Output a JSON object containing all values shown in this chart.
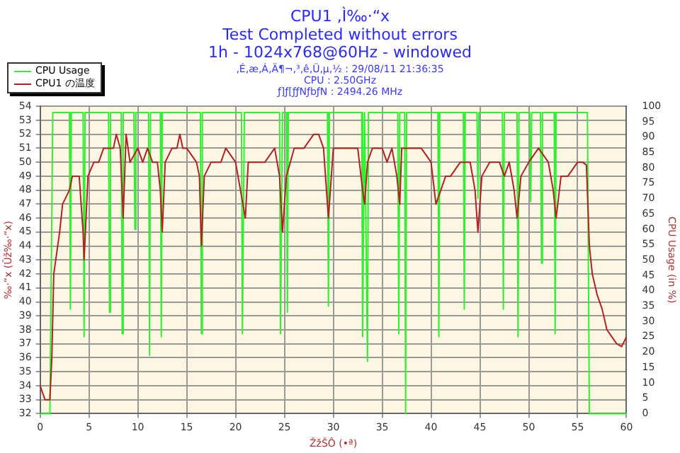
{
  "chart_data": {
    "type": "line",
    "title": "CPU1 ,Ì‰·“x",
    "subtitle": "Test Completed without errors\n1h - 1024x768@60Hz - windowed",
    "annotations": [
      ",É‚æ‚Á‚Ä¶¬‚³‚ê‚Ü‚µ‚½ : 29/08/11 21:36:35",
      "CPU : 2.50GHz",
      "ƒ]ƒ[ƒƒNƒbƒN : 2494.26 MHz"
    ],
    "xlabel": "ŽžŠÔ (•ª)",
    "ylabel": "‰·“x (Ûž‰·“x)",
    "y2label": "CPU Usage (in %)",
    "xlim": [
      0,
      60
    ],
    "xticks": [
      0,
      5,
      10,
      15,
      20,
      25,
      30,
      35,
      40,
      45,
      50,
      55,
      60
    ],
    "ylim": [
      32,
      54
    ],
    "yticks": [
      32,
      33,
      34,
      35,
      36,
      37,
      38,
      39,
      40,
      41,
      42,
      43,
      44,
      45,
      46,
      47,
      48,
      49,
      50,
      51,
      52,
      53,
      54
    ],
    "y2lim": [
      0,
      100
    ],
    "y2ticks": [
      0,
      5,
      10,
      15,
      20,
      25,
      30,
      35,
      40,
      45,
      50,
      55,
      60,
      65,
      70,
      75,
      80,
      85,
      90,
      95,
      100
    ],
    "grid": true,
    "legend": "top left",
    "marker": "none",
    "line_style": "solid",
    "series": [
      {
        "name": "CPU Usage",
        "color": "#33ee33",
        "axis": "y2",
        "x": [
          0,
          1,
          1.3,
          3,
          3.1,
          3.2,
          4.4,
          4.5,
          4.6,
          7,
          7.1,
          7.2,
          8.3,
          8.4,
          8.5,
          9.6,
          9.7,
          9.8,
          11.1,
          11.2,
          11.3,
          12.3,
          12.4,
          12.5,
          16.4,
          16.5,
          16.6,
          20.6,
          20.7,
          20.9,
          24.5,
          24.6,
          24.8,
          25.2,
          25.3,
          25.4,
          29.4,
          29.5,
          29.6,
          32.9,
          33,
          33.2,
          33.5,
          33.6,
          36.6,
          36.7,
          36.8,
          37.3,
          37.4,
          37.5,
          40.7,
          40.8,
          40.9,
          43.3,
          43.4,
          43.5,
          44.7,
          44.8,
          44.9,
          47.3,
          47.4,
          47.5,
          48.8,
          48.9,
          49,
          50.1,
          50.2,
          50.3,
          51.2,
          51.3,
          51.4,
          52.6,
          52.7,
          52.8,
          56,
          56.2,
          60
        ],
        "values": [
          0,
          0,
          98,
          98,
          34,
          98,
          98,
          25,
          98,
          98,
          33,
          98,
          98,
          26,
          98,
          98,
          60,
          98,
          98,
          19,
          98,
          98,
          25,
          98,
          98,
          26,
          98,
          98,
          26,
          98,
          98,
          26,
          98,
          98,
          33,
          98,
          98,
          35,
          98,
          98,
          25,
          98,
          17,
          98,
          98,
          26,
          98,
          98,
          0,
          98,
          98,
          25,
          98,
          98,
          34,
          98,
          98,
          70,
          98,
          98,
          34,
          98,
          98,
          25,
          98,
          98,
          69,
          98,
          98,
          49,
          98,
          98,
          26,
          98,
          98,
          0,
          0
        ]
      },
      {
        "name": "CPU1 の温度",
        "color": "#b22222",
        "x": [
          0,
          0.5,
          1,
          1.2,
          1.4,
          1.8,
          2,
          2.3,
          3,
          3.3,
          4,
          4.4,
          4.5,
          4.9,
          5.5,
          6,
          6.5,
          7,
          7.5,
          7.8,
          8.2,
          8.5,
          8.8,
          9.2,
          10,
          10.5,
          11,
          11.5,
          12,
          12.3,
          12.5,
          12.8,
          13.5,
          14,
          14.3,
          14.6,
          15,
          16,
          16.3,
          16.5,
          16.8,
          17.5,
          18.5,
          19,
          20,
          20.5,
          21,
          21.3,
          22,
          23,
          24,
          24.5,
          24.8,
          25.2,
          25.6,
          26,
          27,
          28,
          28.5,
          29,
          29.5,
          30,
          31.5,
          32.5,
          33,
          33.2,
          33.5,
          34,
          35,
          35.5,
          36,
          36.5,
          36.8,
          37,
          38,
          39,
          40,
          40.5,
          41,
          41.5,
          42,
          43,
          44,
          44.5,
          44.8,
          45.2,
          46,
          47,
          47.5,
          48,
          48.5,
          48.8,
          49.2,
          50,
          51,
          52,
          52.5,
          52.8,
          53.3,
          54,
          55,
          55.5,
          55.9,
          56.2,
          56.5,
          57,
          57.5,
          58,
          58.5,
          59,
          59.5,
          60
        ],
        "values": [
          34,
          33,
          33,
          36,
          42,
          44,
          45,
          47,
          48,
          49,
          49,
          45,
          43,
          49,
          50,
          50,
          51,
          51,
          51,
          52,
          51,
          46,
          52,
          50,
          51,
          50,
          51,
          50,
          50,
          48,
          45,
          50,
          51,
          51,
          52,
          51,
          51,
          50,
          49,
          44,
          49,
          50,
          50,
          51,
          50,
          48,
          46,
          50,
          50,
          50,
          51,
          49,
          45,
          49,
          50,
          51,
          51,
          52,
          52,
          51,
          46,
          51,
          51,
          51,
          48,
          47,
          50,
          51,
          51,
          50,
          51,
          49,
          47,
          51,
          51,
          51,
          50,
          47,
          48,
          49,
          49,
          50,
          50,
          48,
          45,
          49,
          50,
          50,
          49,
          50,
          48,
          46,
          49,
          50,
          51,
          50,
          48,
          46,
          49,
          49,
          50,
          50,
          49.8,
          44,
          42,
          40.5,
          39.5,
          38,
          37.5,
          37,
          36.8,
          37.5
        ]
      }
    ]
  }
}
